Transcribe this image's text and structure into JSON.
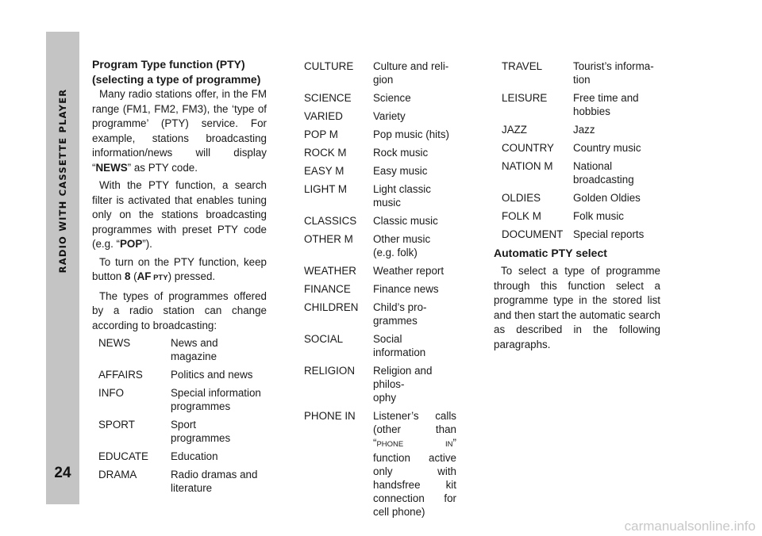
{
  "sidebar": {
    "section_title": "RADIO WITH CASSETTE PLAYER",
    "page_number": "24"
  },
  "col1": {
    "heading_line1": "Program Type function (PTY)",
    "heading_line2": "(selecting a type of programme)",
    "p1_a": "Many radio stations offer, in the FM range (FM1, FM2, FM3), the ‘type of programme’ (PTY) service. For example, stations broadcasting information/news will display “",
    "p1_bold": "NEWS",
    "p1_b": "” as PTY code.",
    "p2_a": "With the PTY function, a search filter is activated that enables tuning only on the stations broadcasting programmes with preset PTY code (e.g. “",
    "p2_bold": "POP",
    "p2_b": "”).",
    "p3_a": "To turn on the PTY function, keep button ",
    "p3_num": "8",
    "p3_paren_open": " (",
    "p3_af": "AF",
    "p3_pty": " PTY",
    "p3_b": ") pressed.",
    "p4": "The types of programmes offered by a radio station can change according to broadcasting:",
    "rows": [
      {
        "term": "NEWS",
        "desc": "News and magazine"
      },
      {
        "term": "AFFAIRS",
        "desc": "Politics and news"
      },
      {
        "term": "INFO",
        "desc": "Special information\nprogrammes"
      },
      {
        "term": "SPORT",
        "desc": "Sport\nprogrammes"
      },
      {
        "term": "EDUCATE",
        "desc": "Education"
      },
      {
        "term": "DRAMA",
        "desc": "Radio dramas and\nliterature"
      }
    ]
  },
  "col2": {
    "rows": [
      {
        "term": "CULTURE",
        "desc": "Culture and reli-\ngion"
      },
      {
        "term": "SCIENCE",
        "desc": "Science"
      },
      {
        "term": "VARIED",
        "desc": "Variety"
      },
      {
        "term": "POP M",
        "desc": "Pop music (hits)"
      },
      {
        "term": "ROCK M",
        "desc": "Rock music"
      },
      {
        "term": "EASY M",
        "desc": "Easy music"
      },
      {
        "term": "LIGHT M",
        "desc": "Light classic music"
      },
      {
        "term": "CLASSICS",
        "desc": "Classic music"
      },
      {
        "term": "OTHER M",
        "desc": "Other music\n(e.g. folk)"
      },
      {
        "term": "WEATHER",
        "desc": "Weather report"
      },
      {
        "term": "FINANCE",
        "desc": "Finance news"
      },
      {
        "term": "CHILDREN",
        "desc": "Child’s pro-\ngrammes"
      },
      {
        "term": "SOCIAL",
        "desc": "Social information"
      },
      {
        "term": "RELIGION",
        "desc": "Religion and philos-\nophy"
      }
    ],
    "phone_term": "PHONE IN",
    "phone_desc_a": "Listener’s calls (other than “",
    "phone_desc_sc": "PHONE IN",
    "phone_desc_b": "” function active only with handsfree kit connection for cell phone)"
  },
  "col3": {
    "rows": [
      {
        "term": "TRAVEL",
        "desc": "Tourist’s informa-\ntion"
      },
      {
        "term": "LEISURE",
        "desc": "Free time and\nhobbies"
      },
      {
        "term": "JAZZ",
        "desc": "Jazz"
      },
      {
        "term": "COUNTRY",
        "desc": "Country music"
      },
      {
        "term": "NATION M",
        "desc": "National\n  broadcasting"
      },
      {
        "term": "OLDIES",
        "desc": "Golden Oldies"
      },
      {
        "term": "FOLK M",
        "desc": "Folk music"
      },
      {
        "term": "DOCUMENT",
        "desc": "Special reports"
      }
    ],
    "heading": "Automatic PTY select",
    "paragraph": "To select a type of programme through this function select a programme type in the stored list and then start the automatic search as described in the following paragraphs."
  },
  "watermark": "carmanualsonline.info"
}
